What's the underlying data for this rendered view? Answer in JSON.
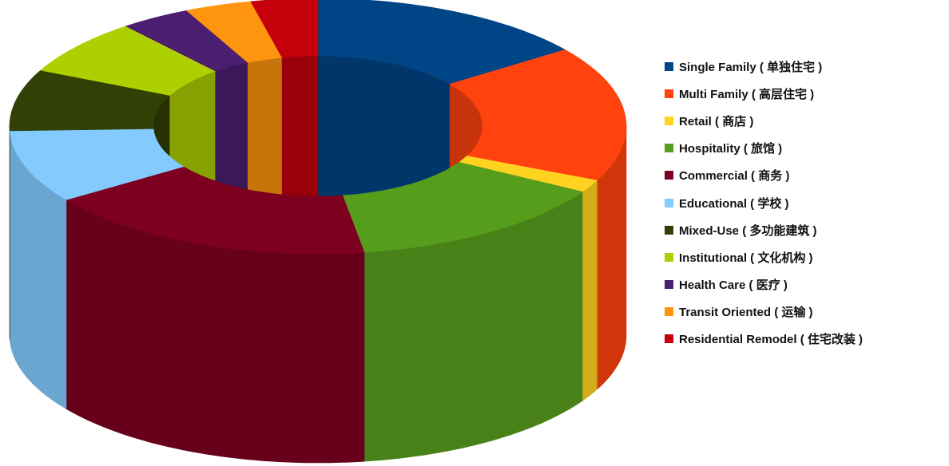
{
  "chart_data": {
    "type": "pie",
    "style": "3d-donut",
    "legend_position": "right",
    "categories": [
      "Single Family ( 单独住宅 )",
      "Multi Family ( 高层住宅 )",
      "Retail ( 商店 )",
      "Hospitality ( 旅馆 )",
      "Commercial ( 商务 )",
      "Educational ( 学校 )",
      "Mixed-Use ( 多功能建筑 )",
      "Institutional ( 文化机构 )",
      "Health Care ( 医疗 )",
      "Transit Oriented ( 运输 )",
      "Residential Remodel ( 住宅改装 )"
    ],
    "values": [
      14.8,
      17.2,
      1.6,
      14.0,
      17.6,
      9.2,
      7.8,
      7.1,
      3.7,
      3.5,
      3.5
    ],
    "unit": "percent",
    "colors": [
      "#004586",
      "#ff420e",
      "#ffd320",
      "#579d1c",
      "#7e0021",
      "#83caff",
      "#314004",
      "#aecf00",
      "#4b1f6f",
      "#ff950e",
      "#c5000b"
    ]
  }
}
